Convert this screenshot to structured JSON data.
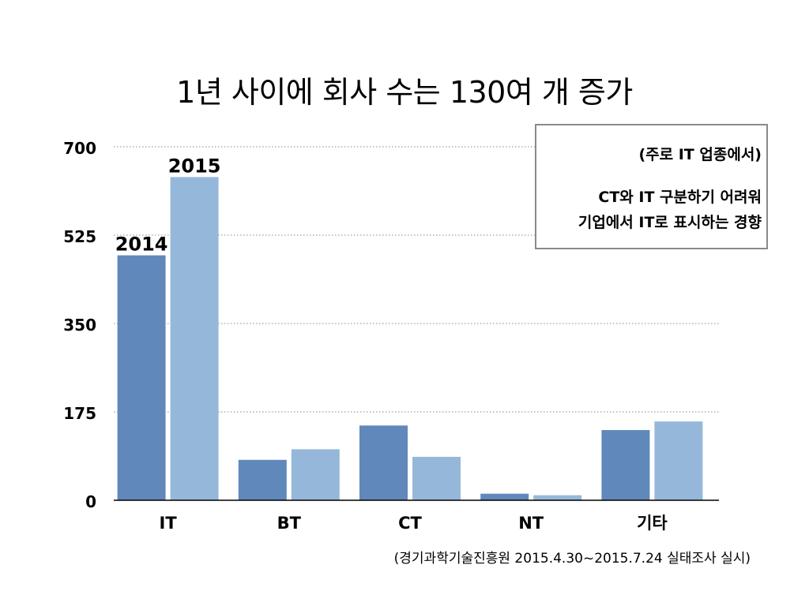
{
  "title": "1년 사이에 회사 수는 130여 개 증가",
  "note": {
    "line1": "(주로 IT 업종에서)",
    "line2": "CT와 IT 구분하기 어려워",
    "line3": "기업에서 IT로 표시하는 경향"
  },
  "source": "(경기과학기술진흥원 2015.4.30~2015.7.24 실태조사 실시)",
  "colors": {
    "series_2014": "#6088ba",
    "series_2015": "#95b8da",
    "grid": "#888888",
    "axis": "#000000"
  },
  "chart_data": {
    "type": "bar",
    "title": "1년 사이에 회사 수는 130여 개 증가",
    "categories": [
      "IT",
      "BT",
      "CT",
      "NT",
      "기타"
    ],
    "series": [
      {
        "name": "2014",
        "values": [
          485,
          80,
          148,
          13,
          139
        ]
      },
      {
        "name": "2015",
        "values": [
          640,
          101,
          86,
          10,
          156
        ]
      }
    ],
    "data_labels": {
      "2014": "2014",
      "2015": "2015"
    },
    "yticks": [
      "0",
      "175",
      "350",
      "525",
      "700"
    ],
    "ylim": [
      0,
      700
    ],
    "grid": true,
    "xlabel": "",
    "ylabel": ""
  }
}
